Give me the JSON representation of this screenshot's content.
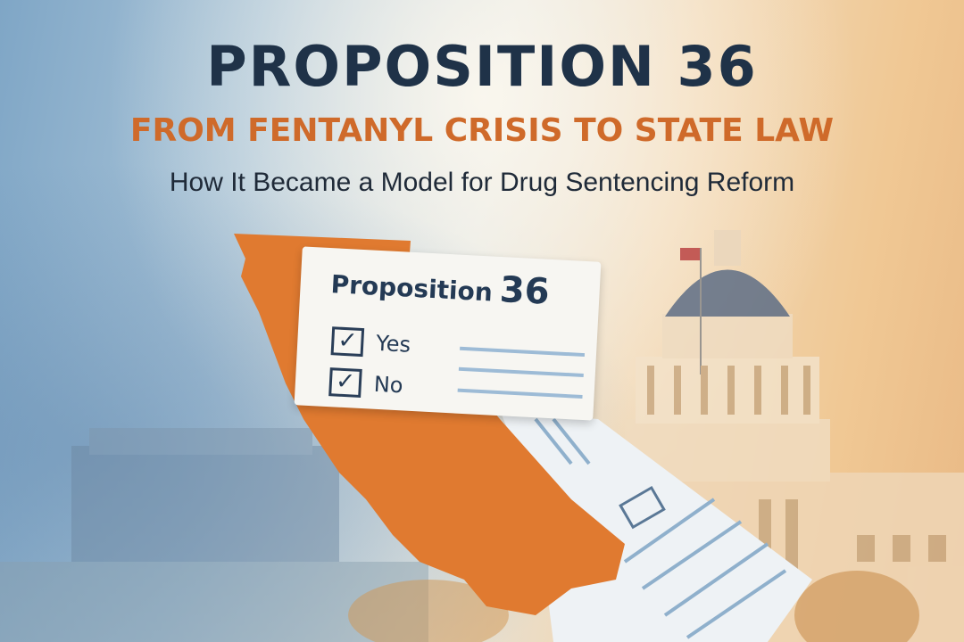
{
  "title": "PROPOSITION 36",
  "subtitle": "FROM FENTANYL CRISIS TO STATE LAW",
  "tagline": "How It Became a Model for Drug Sentencing Reform",
  "ballot": {
    "heading": "Proposition",
    "number": "36",
    "options": [
      {
        "label": "Yes",
        "checked": true
      },
      {
        "label": "No",
        "checked": true
      }
    ]
  },
  "colors": {
    "title": "#1f3248",
    "subtitle": "#cf6a2a",
    "california": "#e07a30"
  }
}
